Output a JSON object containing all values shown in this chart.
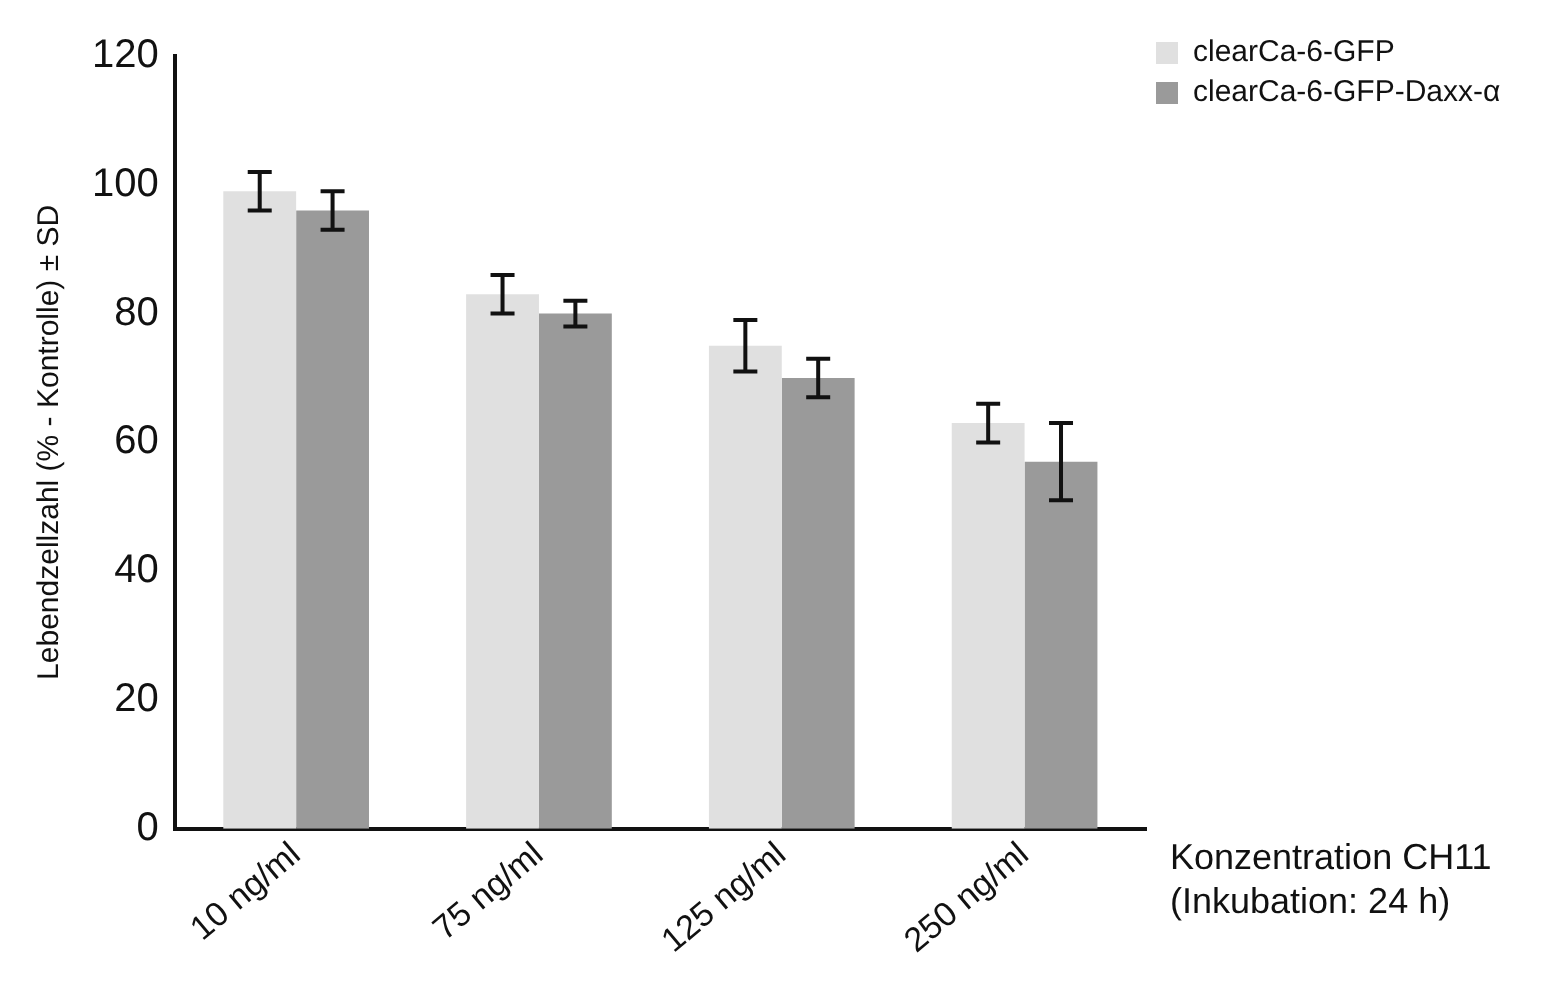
{
  "chart_data": {
    "type": "bar",
    "categories": [
      "10 ng/ml",
      "75 ng/ml",
      "125 ng/ml",
      "250 ng/ml"
    ],
    "series": [
      {
        "name": "clearCa-6-GFP",
        "color": "#e0e0e0",
        "values": [
          99,
          83,
          75,
          63
        ],
        "errors": [
          3,
          3,
          4,
          3
        ]
      },
      {
        "name": "clearCa-6-GFP-Daxx-α",
        "color": "#9a9a9a",
        "values": [
          96,
          80,
          70,
          57
        ],
        "errors": [
          3,
          2,
          3,
          6
        ]
      }
    ],
    "xlabel": "Konzentration CH11\n(Inkubation: 24 h)",
    "ylabel": "Lebendzellzahl (% - Kontrolle) ± SD",
    "ylim": [
      0,
      120
    ],
    "yticks": [
      0,
      20,
      40,
      60,
      80,
      100,
      120
    ],
    "grid": false,
    "legend": "top right"
  }
}
